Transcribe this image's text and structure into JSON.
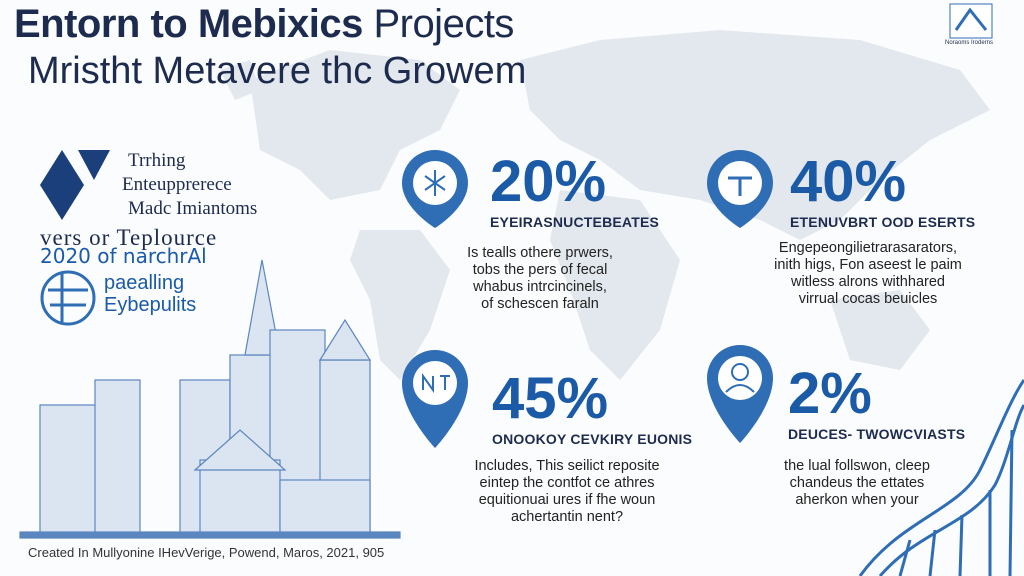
{
  "header": {
    "title_bold": "Entorn to Mebixics",
    "title_light": "Projects",
    "subtitle": "Mristht Metavere thc Growem",
    "corner": "Noraoms Iroderns"
  },
  "left": {
    "lines": [
      "Trrhing",
      "Enteupprerece",
      "Madc Imiantoms"
    ],
    "year_line1": "vers or Teplource",
    "year_line2": "2020 of narchrAl",
    "badge": [
      "paealling",
      "Eybepulits"
    ]
  },
  "stats": [
    {
      "value": "20%",
      "label": "EYEIRASNUCTEBEATES",
      "text": [
        "Is tealls othere prwers,",
        "tobs the pers of fecal",
        "whabus intrcincinels,",
        "of schescen faraln"
      ]
    },
    {
      "value": "40%",
      "label": "ETENUVBRT OOD ESERTS",
      "text": [
        "Engepeongilietrarasarators,",
        "inith higs, Fon aseest le paim",
        "witless alrons withhared",
        "virrual cocas beuicles"
      ]
    },
    {
      "value": "45%",
      "label": "ONOOKOY CEVKIRY EUONIS",
      "text": [
        "Includes, This seilict reposite",
        "eintep the contfot ce athres",
        "equitionuai ures if fhe woun",
        "achertantin nent?"
      ]
    },
    {
      "value": "2%",
      "label": "DEUCES- TWOWCVIASTS",
      "text": [
        "the lual follswon, cleep",
        "chandeus the ettates",
        "aherkon when your"
      ]
    }
  ],
  "footer": "Created In Mullyonine IHevVerige, Powend, Maros, 2021, 905"
}
